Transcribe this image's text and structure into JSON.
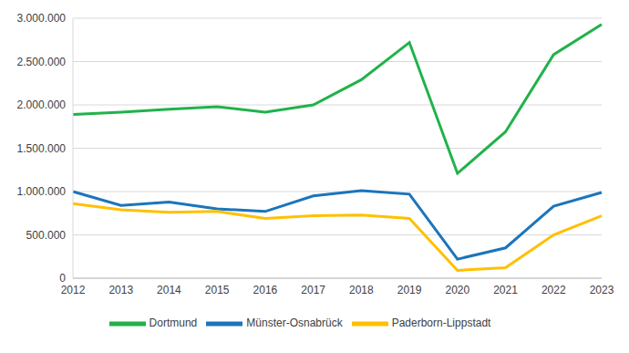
{
  "chart_data": {
    "type": "line",
    "categories": [
      "2012",
      "2013",
      "2014",
      "2015",
      "2016",
      "2017",
      "2018",
      "2019",
      "2020",
      "2021",
      "2022",
      "2023"
    ],
    "series": [
      {
        "name": "Dortmund",
        "color": "#21b24b",
        "values": [
          1890000,
          1915000,
          1950000,
          1980000,
          1915000,
          2000000,
          2290000,
          2720000,
          1210000,
          1690000,
          2580000,
          2930000
        ]
      },
      {
        "name": "Münster-Osnabrück",
        "color": "#1b75bc",
        "values": [
          1000000,
          840000,
          880000,
          800000,
          770000,
          950000,
          1010000,
          970000,
          220000,
          350000,
          830000,
          990000
        ]
      },
      {
        "name": "Paderborn-Lippstadt",
        "color": "#ffc000",
        "values": [
          860000,
          790000,
          760000,
          770000,
          690000,
          720000,
          730000,
          690000,
          90000,
          120000,
          500000,
          720000
        ]
      }
    ],
    "ylim": [
      0,
      3000000
    ],
    "yticks": [
      0,
      {
        "value": 500000,
        "label": "500.000"
      },
      {
        "value": 1000000,
        "label": "1.000.000"
      },
      {
        "value": 1500000,
        "label": "1.500.000"
      },
      {
        "value": 2000000,
        "label": "2.000.000"
      },
      {
        "value": 2500000,
        "label": "2.500.000"
      },
      {
        "value": 3000000,
        "label": "3.000.000"
      }
    ],
    "grid": true,
    "legend": "bottom"
  }
}
